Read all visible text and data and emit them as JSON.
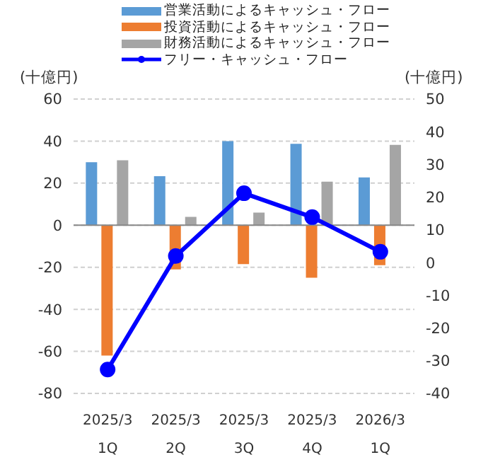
{
  "chart_data": {
    "type": "bar",
    "ylabel": "(十億円)",
    "y2label": "(十億円)",
    "categories": [
      "2025/3\n1Q",
      "2025/3\n2Q",
      "2025/3\n3Q",
      "2025/3\n4Q",
      "2026/3\n1Q"
    ],
    "series": [
      {
        "name": "営業活動によるキャッシュ・フロー",
        "color": "#5b9bd5",
        "values": [
          30,
          23.3,
          40,
          38.7,
          22.7
        ]
      },
      {
        "name": "投資活動によるキャッシュ・フロー",
        "color": "#ed7d31",
        "values": [
          -62,
          -21,
          -18.5,
          -25,
          -19
        ]
      },
      {
        "name": "財務活動によるキャッシュ・フロー",
        "color": "#a5a5a5",
        "values": [
          30.9,
          4,
          6,
          20.7,
          38.2
        ]
      },
      {
        "name": "フリー・キャッシュ・フロー",
        "type": "line",
        "axis": "y2",
        "color": "#0000ff",
        "values": [
          -32.7,
          2,
          21.2,
          13.9,
          3.3
        ]
      }
    ],
    "ylim": [
      -80,
      60
    ],
    "yticks": [
      -80,
      -60,
      -40,
      -20,
      0,
      20,
      40,
      60
    ],
    "y2lim": [
      -40,
      50
    ],
    "y2ticks": [
      -40,
      -30,
      -20,
      -10,
      0,
      10,
      20,
      30,
      40,
      50
    ],
    "grid": "y",
    "legend": "top",
    "marker": "circle"
  }
}
